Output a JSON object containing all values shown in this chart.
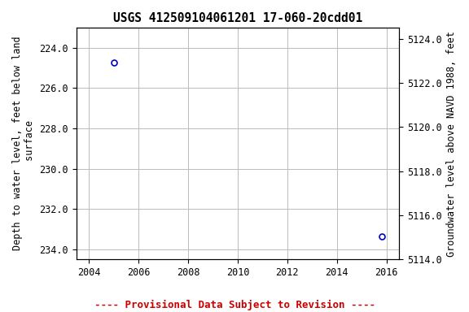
{
  "title": "USGS 412509104061201 17-060-20cdd01",
  "points_x": [
    2005.0,
    2015.8
  ],
  "points_y": [
    224.75,
    233.35
  ],
  "xlim": [
    2003.5,
    2016.5
  ],
  "ylim_left": [
    234.5,
    223.0
  ],
  "ylim_right": [
    5114.0,
    5124.5
  ],
  "xticks": [
    2004,
    2006,
    2008,
    2010,
    2012,
    2014,
    2016
  ],
  "yticks_left": [
    224.0,
    226.0,
    228.0,
    230.0,
    232.0,
    234.0
  ],
  "yticks_right": [
    5114.0,
    5116.0,
    5118.0,
    5120.0,
    5122.0,
    5124.0
  ],
  "ylabel_left": "Depth to water level, feet below land\n surface",
  "ylabel_right": "Groundwater level above NAVD 1988, feet",
  "point_color": "#0000cc",
  "marker": "o",
  "marker_size": 5,
  "marker_facecolor": "none",
  "marker_edgewidth": 1.2,
  "grid_color": "#bbbbbb",
  "grid_linestyle": "-",
  "grid_linewidth": 0.7,
  "background_color": "#ffffff",
  "provisional_text": "---- Provisional Data Subject to Revision ----",
  "provisional_color": "#cc0000",
  "title_fontsize": 10.5,
  "axis_label_fontsize": 8.5,
  "tick_fontsize": 8.5,
  "provisional_fontsize": 9,
  "font_family": "monospace"
}
